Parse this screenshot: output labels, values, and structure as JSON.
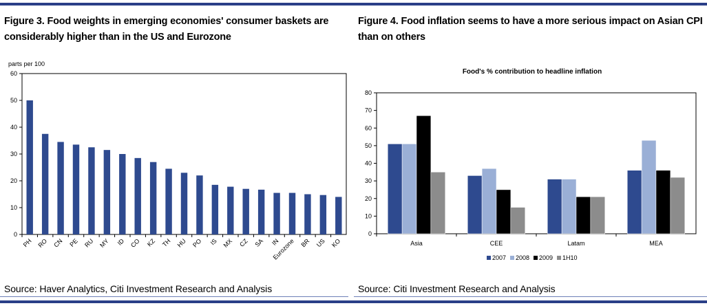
{
  "figures": [
    {
      "title_line1": "Figure 3. Food weights in emerging economies' consumer baskets are",
      "title_line2": "considerably higher than in the US and Eurozone",
      "source": "Source: Haver Analytics, Citi Investment Research and Analysis"
    },
    {
      "title_line1": "Figure 4. Food inflation seems to have a more serious impact on Asian CPI",
      "title_line2": "than on others",
      "source": "Source: Citi Investment Research and Analysis"
    }
  ],
  "colors": {
    "rule": "#2a3f88",
    "bar": "#2e4a8f"
  },
  "chart_data": [
    {
      "type": "bar",
      "title": "",
      "ylabel": "parts per 100",
      "xlabel": "",
      "ylim": [
        0,
        60
      ],
      "yticks": [
        0,
        10,
        20,
        30,
        40,
        50,
        60
      ],
      "grid": false,
      "categories": [
        "PH",
        "RO",
        "CN",
        "PE",
        "RU",
        "MY",
        "ID",
        "CO",
        "KZ",
        "TH",
        "HU",
        "PO",
        "IS",
        "MX",
        "CZ",
        "SA",
        "IN",
        "Eurozone",
        "BR",
        "US",
        "KO"
      ],
      "values": [
        50,
        37.5,
        34.5,
        33.5,
        32.5,
        31.5,
        30,
        28.5,
        27,
        24.5,
        23,
        22,
        18.5,
        17.8,
        17,
        16.7,
        15.5,
        15.5,
        15,
        14.7,
        14
      ],
      "bar_color": "#2e4a8f"
    },
    {
      "type": "bar",
      "title": "Food's % contribution to headline inflation",
      "xlabel": "",
      "ylabel": "",
      "ylim": [
        0,
        80
      ],
      "yticks": [
        0,
        10,
        20,
        30,
        40,
        50,
        60,
        70,
        80
      ],
      "grid": false,
      "legend_position": "bottom",
      "categories": [
        "Asia",
        "CEE",
        "Latam",
        "MEA"
      ],
      "series": [
        {
          "name": "2007",
          "values": [
            51,
            33,
            31,
            36
          ],
          "color": "#2e4a8f"
        },
        {
          "name": "2008",
          "values": [
            51,
            37,
            31,
            53
          ],
          "color": "#9aafd6"
        },
        {
          "name": "2009",
          "values": [
            67,
            25,
            21,
            36
          ],
          "color": "#000000"
        },
        {
          "name": "1H10",
          "values": [
            35,
            15,
            21,
            32
          ],
          "color": "#8c8c8c"
        }
      ]
    }
  ]
}
